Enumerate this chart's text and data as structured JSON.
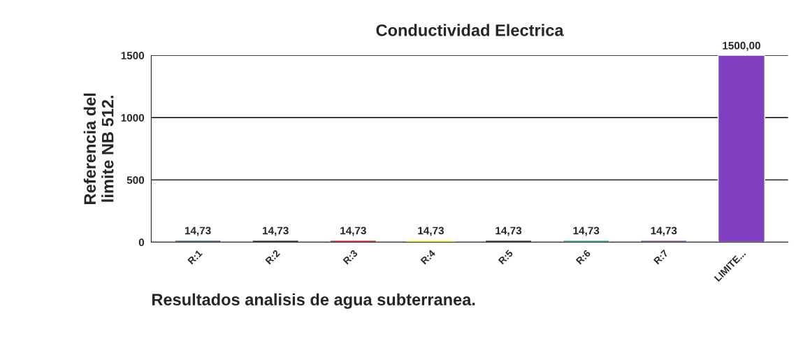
{
  "chart_data": {
    "type": "bar",
    "title": "Conductividad Electrica",
    "xlabel": "Resultados analisis de agua subterranea.",
    "ylabel": "Referencia del\nlimite NB 512.",
    "categories": [
      "R:1",
      "R:2",
      "R:3",
      "R:4",
      "R:5",
      "R:6",
      "R:7",
      "LIMITE..."
    ],
    "values": [
      14.73,
      14.73,
      14.73,
      14.73,
      14.73,
      14.73,
      14.73,
      1500
    ],
    "colors": [
      "#1f3a7a",
      "#000000",
      "#c00000",
      "#ffff00",
      "#000000",
      "#00a050",
      "#7030a0",
      "#7f3fbf"
    ],
    "value_labels": [
      "14,73",
      "14,73",
      "14,73",
      "14,73",
      "14,73",
      "14,73",
      "14,73",
      "1500,00"
    ],
    "ylim": [
      0,
      1500
    ],
    "yticks": [
      0,
      500,
      1000,
      1500
    ],
    "grid": "y"
  }
}
